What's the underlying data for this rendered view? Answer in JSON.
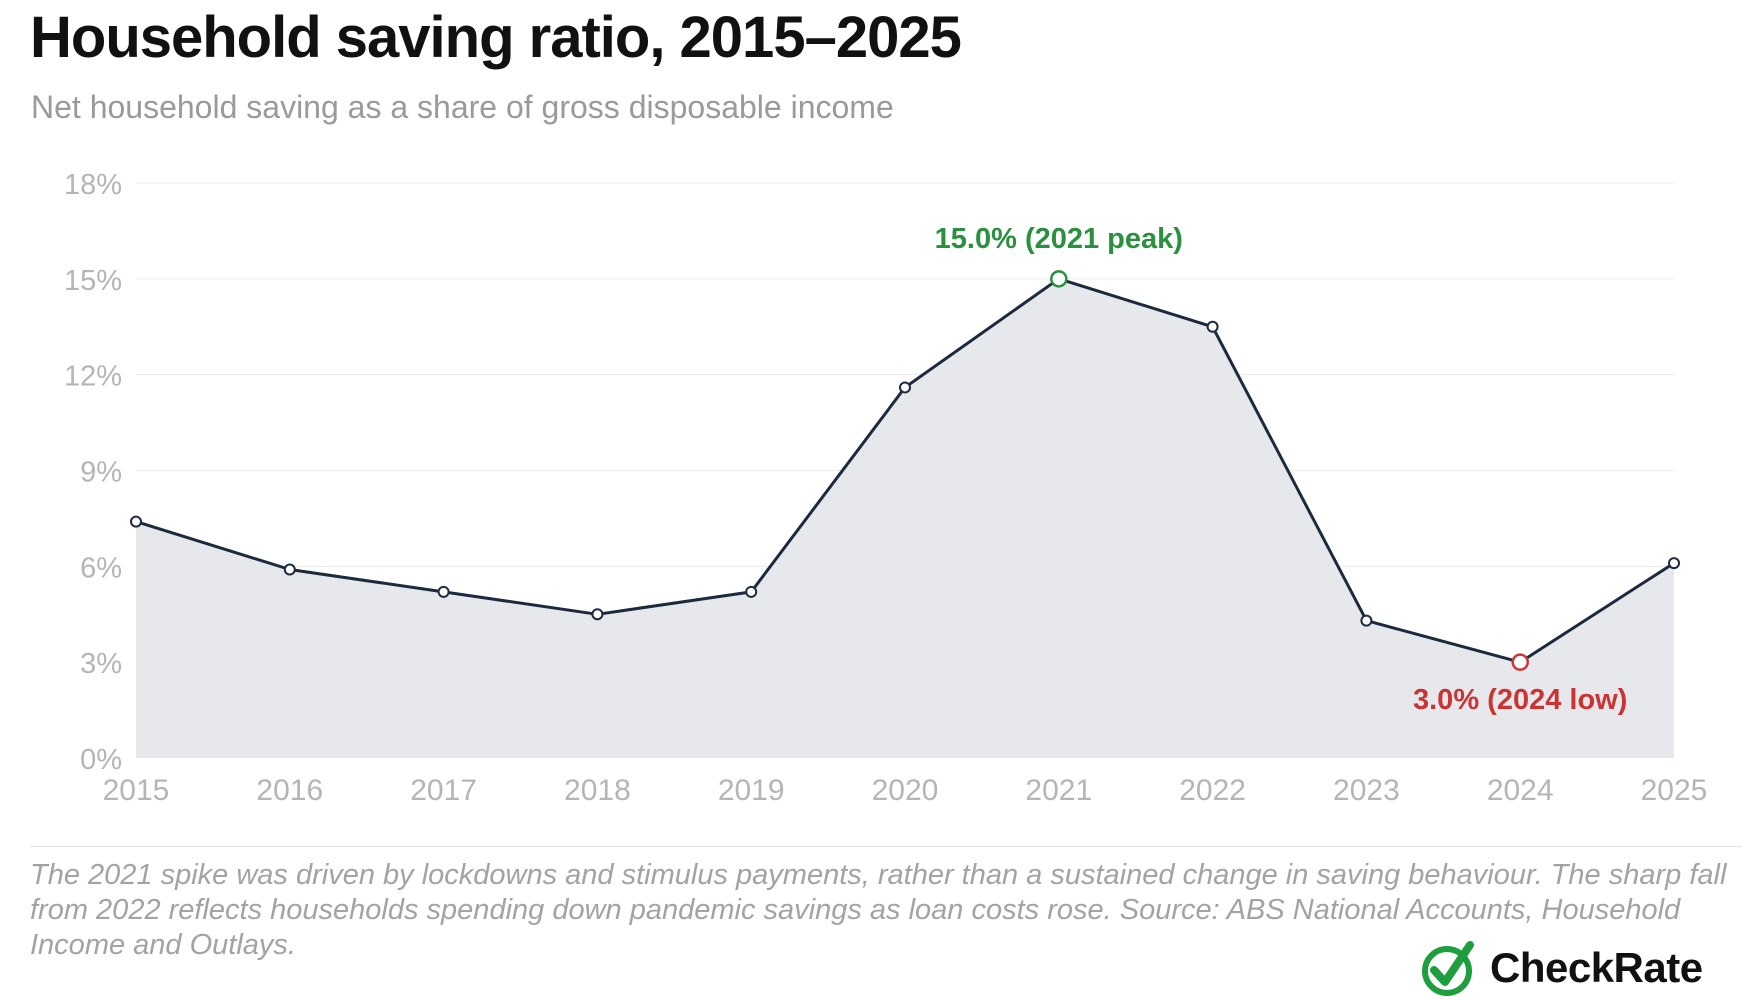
{
  "header": {
    "title": "Household saving ratio, 2015–2025",
    "subtitle": "Net household saving as a share of gross disposable income"
  },
  "chart_data": {
    "type": "area",
    "title": "Household saving ratio, 2015–2025",
    "subtitle": "Net household saving as a share of gross disposable income",
    "xlabel": "",
    "ylabel": "",
    "x": [
      2015,
      2016,
      2017,
      2018,
      2019,
      2020,
      2021,
      2022,
      2023,
      2024,
      2025
    ],
    "x_tick_labels": [
      "2015",
      "2016",
      "2017",
      "2018",
      "2019",
      "2020",
      "2021",
      "2022",
      "2023",
      "2024",
      "2025"
    ],
    "series": [
      {
        "values": [
          7.4,
          5.9,
          5.2,
          4.5,
          5.2,
          11.6,
          15.0,
          13.5,
          4.3,
          3.0,
          6.1
        ]
      }
    ],
    "ylim": [
      0,
      18
    ],
    "y_ticks": [
      0,
      3,
      6,
      9,
      12,
      15,
      18
    ],
    "y_tick_labels": [
      "0%",
      "3%",
      "6%",
      "9%",
      "12%",
      "15%",
      "18%"
    ],
    "grid": true,
    "legend": "none",
    "annotations": [
      {
        "x": 2021,
        "y": 15.0,
        "text": "15.0% (2021 peak)",
        "color": "#2a8f3e",
        "position": "above"
      },
      {
        "x": 2024,
        "y": 3.0,
        "text": "3.0% (2024 low)",
        "color": "#cc3333",
        "position": "below"
      }
    ],
    "colors": {
      "line": "#1c2a3e",
      "area": "#e6e8ec",
      "grid": "#ececec",
      "tick_label": "#b5b5b5"
    }
  },
  "footer": {
    "caption": "The 2021 spike was driven by lockdowns and stimulus payments, rather than a sustained change in saving behaviour. The sharp fall from 2022 reflects households spending down pandemic savings as loan costs rose. Source: ABS National Accounts, Household Income and Outlays.",
    "brand": "CheckRate",
    "brand_icon": "check-circle-icon",
    "brand_color": "#1e9e3e"
  }
}
